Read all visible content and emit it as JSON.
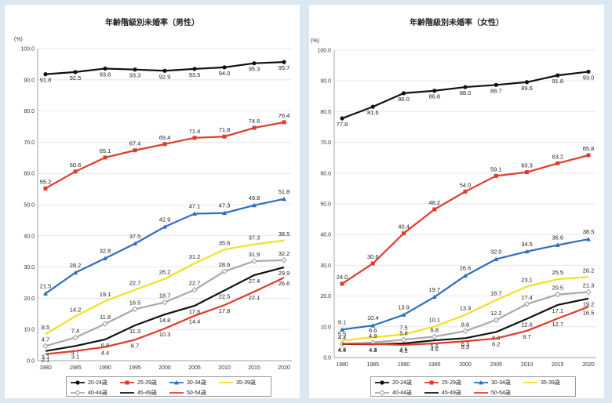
{
  "chart_data": [
    {
      "type": "line",
      "title": "年齢階級別未婚率（男性）",
      "ylabel": "(%)",
      "ylim": [
        0,
        100
      ],
      "yticks": [
        "0.0",
        "10.0",
        "20.0",
        "30.0",
        "40.0",
        "50.0",
        "60.0",
        "70.0",
        "80.0",
        "90.0",
        "100.0"
      ],
      "x": [
        "1980",
        "1985",
        "1990",
        "1995",
        "2000",
        "2005",
        "2010",
        "2015",
        "2020"
      ],
      "series": [
        {
          "name": "20-24歳",
          "color": "#111111",
          "marker": "circle",
          "values": [
            91.8,
            92.5,
            93.6,
            93.3,
            92.9,
            93.5,
            94.0,
            95.3,
            95.7
          ],
          "labels": [
            "91.8",
            "92.5",
            "93.6",
            "93.3",
            "92.9",
            "93.5",
            "94.0",
            "95.3",
            "95.7"
          ]
        },
        {
          "name": "25-29歳",
          "color": "#e03a2a",
          "marker": "square",
          "values": [
            55.2,
            60.6,
            65.1,
            67.4,
            69.4,
            71.4,
            71.8,
            74.6,
            76.4
          ],
          "labels": [
            "55.2",
            "60.6",
            "65.1",
            "67.4",
            "69.4",
            "71.4",
            "71.8",
            "74.6",
            "76.4"
          ]
        },
        {
          "name": "30-34歳",
          "color": "#2e6ec0",
          "marker": "triangle",
          "values": [
            21.5,
            28.2,
            32.8,
            37.5,
            42.9,
            47.1,
            47.3,
            49.8,
            51.8
          ],
          "labels": [
            "21.5",
            "28.2",
            "32.8",
            "37.5",
            "42.9",
            "47.1",
            "47.3",
            "49.8",
            "51.8"
          ]
        },
        {
          "name": "35-39歳",
          "color": "#f2e020",
          "marker": "none",
          "values": [
            8.5,
            14.2,
            19.1,
            22.7,
            26.2,
            31.2,
            35.6,
            37.3,
            38.5
          ],
          "labels": [
            "8.5",
            "14.2",
            "19.1",
            "22.7",
            "26.2",
            "31.2",
            "35.6",
            "37.3",
            "38.5"
          ]
        },
        {
          "name": "40-44歳",
          "color": "#a9a9a9",
          "marker": "diamond",
          "values": [
            4.7,
            7.4,
            11.8,
            16.5,
            18.7,
            22.7,
            28.6,
            31.9,
            32.2
          ],
          "labels": [
            "4.7",
            "7.4",
            "11.8",
            "16.5",
            "18.7",
            "22.7",
            "28.6",
            "31.9",
            "32.2"
          ]
        },
        {
          "name": "45-49歳",
          "color": "#111111",
          "marker": "none",
          "values": [
            3.1,
            4.7,
            6.8,
            11.3,
            14.8,
            17.6,
            22.5,
            27.4,
            29.9
          ],
          "labels": [
            "3.1",
            "4.7",
            "6.8",
            "11.3",
            "14.8",
            "17.6",
            "22.5",
            "27.4",
            "29.9"
          ]
        },
        {
          "name": "50-54歳",
          "color": "#e03a2a",
          "marker": "none",
          "values": [
            2.1,
            3.1,
            4.4,
            6.7,
            10.3,
            14.4,
            17.8,
            22.1,
            26.6
          ],
          "labels": [
            "2.1",
            "3.1",
            "4.4",
            "6.7",
            "10.3",
            "14.4",
            "17.8",
            "22.1",
            "26.6"
          ]
        }
      ],
      "legend": "bottom"
    },
    {
      "type": "line",
      "title": "年齢階級別未婚率（女性）",
      "ylabel": "(%)",
      "ylim": [
        0,
        100
      ],
      "yticks": [
        "0.0",
        "10.0",
        "20.0",
        "30.0",
        "40.0",
        "50.0",
        "60.0",
        "70.0",
        "80.0",
        "90.0",
        "100.0"
      ],
      "x": [
        "1980",
        "1985",
        "1990",
        "1995",
        "2000",
        "2005",
        "2010",
        "2015",
        "2020"
      ],
      "series": [
        {
          "name": "20-24歳",
          "color": "#111111",
          "marker": "circle",
          "values": [
            77.8,
            81.6,
            86.0,
            86.8,
            88.0,
            88.7,
            89.6,
            91.8,
            93.0
          ],
          "labels": [
            "77.8",
            "81.6",
            "86.0",
            "86.8",
            "88.0",
            "88.7",
            "89.6",
            "91.8",
            "93.0"
          ]
        },
        {
          "name": "25-29歳",
          "color": "#e03a2a",
          "marker": "square",
          "values": [
            24.0,
            30.6,
            40.4,
            48.2,
            54.0,
            59.1,
            60.3,
            63.2,
            65.8
          ],
          "labels": [
            "24.0",
            "30.6",
            "40.4",
            "48.2",
            "54.0",
            "59.1",
            "60.3",
            "63.2",
            "65.8"
          ]
        },
        {
          "name": "30-34歳",
          "color": "#2e6ec0",
          "marker": "triangle",
          "values": [
            9.1,
            10.4,
            13.9,
            19.7,
            26.6,
            32.0,
            34.5,
            36.6,
            38.5
          ],
          "labels": [
            "9.1",
            "10.4",
            "13.9",
            "19.7",
            "26.6",
            "32.0",
            "34.5",
            "36.6",
            "38.5"
          ]
        },
        {
          "name": "35-39歳",
          "color": "#f2e020",
          "marker": "none",
          "values": [
            5.5,
            6.6,
            7.5,
            10.1,
            13.9,
            18.7,
            23.1,
            25.5,
            26.2
          ],
          "labels": [
            "5.5",
            "6.6",
            "7.5",
            "10.1",
            "13.9",
            "18.7",
            "23.1",
            "25.5",
            "26.2"
          ]
        },
        {
          "name": "40-44歳",
          "color": "#a9a9a9",
          "marker": "diamond",
          "values": [
            4.4,
            4.9,
            5.8,
            6.8,
            8.6,
            12.2,
            17.4,
            20.5,
            21.3
          ],
          "labels": [
            "4.4",
            "4.9",
            "5.8",
            "6.8",
            "8.6",
            "12.2",
            "17.4",
            "20.5",
            "21.3"
          ]
        },
        {
          "name": "45-49歳",
          "color": "#111111",
          "marker": "none",
          "values": [
            4.4,
            4.3,
            4.6,
            5.6,
            6.3,
            8.3,
            12.6,
            17.1,
            19.2
          ],
          "labels": [
            "4.4",
            "4.3",
            "4.6",
            "5.6",
            "6.3",
            "8.3",
            "12.6",
            "17.1",
            "19.2"
          ]
        },
        {
          "name": "50-54歳",
          "color": "#e03a2a",
          "marker": "none",
          "values": [
            4.5,
            4.4,
            4.1,
            4.6,
            5.3,
            6.2,
            8.7,
            12.7,
            16.5
          ],
          "labels": [
            "4.5",
            "4.4",
            "4.1",
            "4.6",
            "5.3",
            "6.2",
            "8.7",
            "12.7",
            "16.5"
          ]
        }
      ],
      "legend": "bottom"
    }
  ]
}
